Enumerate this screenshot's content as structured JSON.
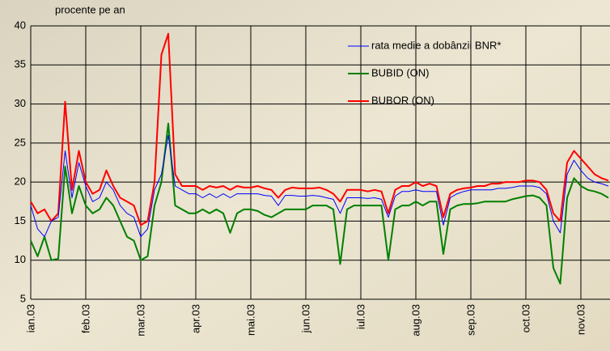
{
  "chart_data": {
    "type": "line",
    "title": "procente pe an",
    "categories": [
      "ian.03",
      null,
      null,
      null,
      null,
      null,
      null,
      null,
      "feb.03",
      null,
      null,
      null,
      null,
      null,
      null,
      null,
      "mar.03",
      null,
      null,
      null,
      null,
      null,
      null,
      null,
      "apr.03",
      null,
      null,
      null,
      null,
      null,
      null,
      null,
      "mai.03",
      null,
      null,
      null,
      null,
      null,
      null,
      null,
      "jun.03",
      null,
      null,
      null,
      null,
      null,
      null,
      null,
      "iul.03",
      null,
      null,
      null,
      null,
      null,
      null,
      null,
      "aug.03",
      null,
      null,
      null,
      null,
      null,
      null,
      null,
      "sep.03",
      null,
      null,
      null,
      null,
      null,
      null,
      null,
      "oct.03",
      null,
      null,
      null,
      null,
      null,
      null,
      null,
      "nov.03",
      null,
      null,
      null,
      null
    ],
    "series": [
      {
        "name": "rata medie a dobânzii BNR*",
        "color": "#0000ff",
        "values": [
          17,
          14,
          13,
          15,
          15.5,
          24,
          18,
          22.5,
          19.5,
          17.5,
          18,
          20,
          19,
          17,
          16,
          15.5,
          13,
          14,
          19,
          21,
          26,
          19.5,
          19,
          18.5,
          18.5,
          18,
          18.5,
          18,
          18.5,
          18,
          18.5,
          18.5,
          18.5,
          18.5,
          18.3,
          18.2,
          17,
          18.3,
          18.3,
          18.2,
          18.2,
          18.3,
          18.2,
          18,
          17.8,
          16,
          18,
          18,
          18,
          17.9,
          18,
          17.8,
          15.5,
          18.2,
          18.8,
          18.8,
          19,
          18.8,
          18.8,
          18.8,
          14.5,
          18,
          18.5,
          18.8,
          19,
          19,
          19,
          19,
          19.2,
          19.2,
          19.3,
          19.5,
          19.5,
          19.5,
          19.3,
          18.5,
          15,
          13.5,
          21,
          22.8,
          21.5,
          20.5,
          20,
          19.8,
          19.5
        ]
      },
      {
        "name": "BUBID (ON)",
        "color": "#008000",
        "values": [
          12.5,
          10.5,
          13,
          10,
          10.2,
          22,
          16,
          19.5,
          17,
          16,
          16.5,
          18,
          17,
          15,
          13,
          12.5,
          10,
          10.5,
          17,
          20,
          27.5,
          17,
          16.5,
          16,
          16,
          16.5,
          16,
          16.5,
          16,
          13.5,
          16,
          16.5,
          16.5,
          16.3,
          15.8,
          15.5,
          16,
          16.5,
          16.5,
          16.5,
          16.5,
          17,
          17,
          17,
          16.5,
          9.5,
          16.5,
          17,
          17,
          17,
          17,
          17,
          10,
          16.5,
          17,
          17,
          17.5,
          17,
          17.5,
          17.5,
          10.8,
          16.5,
          17,
          17.2,
          17.2,
          17.3,
          17.5,
          17.5,
          17.5,
          17.5,
          17.8,
          18,
          18.2,
          18.3,
          18,
          17,
          9,
          7,
          18,
          20.5,
          19.5,
          19,
          18.8,
          18.5,
          18
        ]
      },
      {
        "name": "BUBOR (ON)",
        "color": "#ff0000",
        "values": [
          17.5,
          16,
          16.5,
          15,
          16,
          30.3,
          19,
          24,
          20,
          18.5,
          19,
          21.5,
          19.5,
          18,
          17.5,
          17,
          14.5,
          15,
          20,
          36.3,
          39,
          21,
          19.5,
          19.5,
          19.5,
          19,
          19.5,
          19.3,
          19.5,
          19,
          19.5,
          19.3,
          19.3,
          19.5,
          19.2,
          19,
          18,
          19,
          19.3,
          19.2,
          19.2,
          19.2,
          19.3,
          19,
          18.5,
          17.5,
          19,
          19,
          19,
          18.8,
          19,
          18.8,
          16,
          19,
          19.5,
          19.5,
          20,
          19.5,
          19.8,
          19.5,
          15.5,
          18.5,
          19,
          19.2,
          19.3,
          19.5,
          19.5,
          19.8,
          19.8,
          20,
          20,
          20,
          20.2,
          20.2,
          20,
          19,
          16,
          15,
          22.5,
          24,
          23,
          22,
          21,
          20.5,
          20.2
        ]
      }
    ],
    "ylim": [
      5,
      40
    ],
    "yticks": [
      5,
      10,
      15,
      20,
      25,
      30,
      35,
      40
    ],
    "grid": true,
    "legend": "upper right"
  }
}
